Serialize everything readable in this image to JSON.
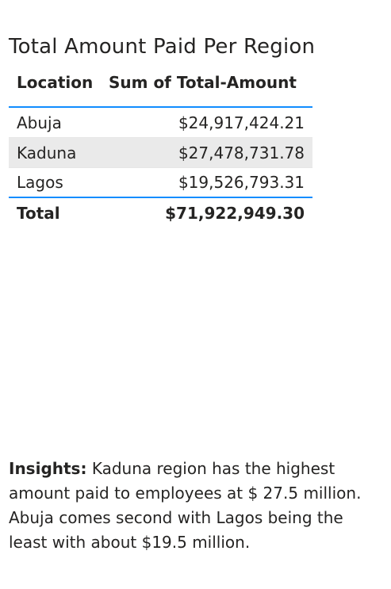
{
  "title": "Total Amount Paid Per Region",
  "table": {
    "headers": {
      "location": "Location",
      "amount": "Sum of Total-Amount"
    },
    "rows": [
      {
        "location": "Abuja",
        "amount": "$24,917,424.21"
      },
      {
        "location": "Kaduna",
        "amount": "$27,478,731.78"
      },
      {
        "location": "Lagos",
        "amount": "$19,526,793.31"
      }
    ],
    "total": {
      "label": "Total",
      "amount": "$71,922,949.30"
    }
  },
  "insights": {
    "lead": "Insights:",
    "text": " Kaduna region has the highest amount paid to employees at $ 27.5 million. Abuja comes second with Lagos being the least with about $19.5 million."
  },
  "colors": {
    "accent_border": "#118dff",
    "alt_row": "#eaeaea"
  }
}
